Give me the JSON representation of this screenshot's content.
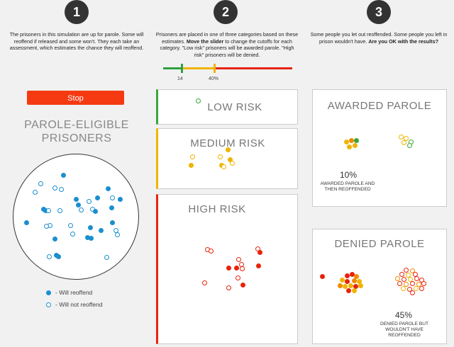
{
  "steps": [
    {
      "number": "1",
      "text_parts": [
        {
          "t": "The prisoners in this simulation are up for parole. Some will reoffend if released and some won't. They each take an assessment, which estimates the chance they will reoffend.",
          "b": false
        }
      ]
    },
    {
      "number": "2",
      "text_parts": [
        {
          "t": "Prisoners are placed in one of three categories based on these estimates. ",
          "b": false
        },
        {
          "t": "Move the slider",
          "b": true
        },
        {
          "t": " to change the cutoffs for each category. \"Low risk\" prisoners will be awarded parole. \"High risk\" prisoners will be denied.",
          "b": false
        }
      ]
    },
    {
      "number": "3",
      "text_parts": [
        {
          "t": "Some people you let out reoffended. Some people you left in prison wouldn't have. ",
          "b": false
        },
        {
          "t": "Are you OK with the results?",
          "b": true
        }
      ]
    }
  ],
  "slider": {
    "low_cutoff_label": "14",
    "high_cutoff_label": "40%",
    "low_cutoff_value": 14,
    "high_cutoff_value": 40,
    "colors": {
      "low": "#2ea043",
      "mid": "#f0b400",
      "high": "#e8230c"
    }
  },
  "stop_button": {
    "label": "Stop"
  },
  "pool": {
    "title_line1": "PAROLE-ELIGIBLE",
    "title_line2": "PRISONERS",
    "color": "#1a8fd0",
    "legend": [
      {
        "filled": true,
        "label": "- Will reoffend"
      },
      {
        "filled": false,
        "label": "- Will not reoffend"
      }
    ]
  },
  "categories": [
    {
      "key": "low",
      "title": "LOW RISK",
      "color": "#3aa63a"
    },
    {
      "key": "medium",
      "title": "MEDIUM RISK",
      "color": "#f0b400"
    },
    {
      "key": "high",
      "title": "HIGH RISK",
      "color": "#e8230c"
    }
  ],
  "awarded": {
    "title": "AWARDED PAROLE",
    "percent": "10%",
    "caption": "AWARDED PAROLE AND THEN REOFFENDED"
  },
  "denied": {
    "title": "DENIED PAROLE",
    "percent": "45%",
    "caption": "DENIED PAROLE BUT WOULDN'T HAVE REOFFENDED"
  }
}
